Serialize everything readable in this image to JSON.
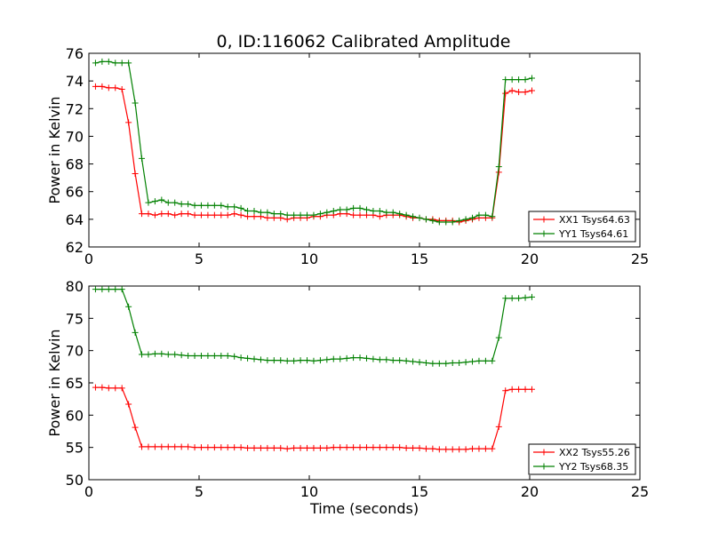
{
  "figure": {
    "title": "0, ID:116062 Calibrated Amplitude",
    "xlabel": "Time (seconds)"
  },
  "colors": {
    "series_1": "#ff0000",
    "series_2": "#008000",
    "axes": "#000000",
    "background": "#ffffff"
  },
  "chart_data": [
    {
      "type": "line",
      "title": "0, ID:116062 Calibrated Amplitude",
      "xlabel": "",
      "ylabel": "Power in Kelvin",
      "xlim": [
        0,
        25
      ],
      "ylim": [
        62,
        76
      ],
      "xticks": [
        0,
        5,
        10,
        15,
        20,
        25
      ],
      "yticks": [
        62,
        64,
        66,
        68,
        70,
        72,
        74,
        76
      ],
      "grid": false,
      "marker": "+",
      "legend": {
        "position": "lower-right",
        "entries": [
          "XX1 Tsys64.63",
          "YY1 Tsys64.61"
        ]
      },
      "x": [
        0.3,
        0.6,
        0.9,
        1.2,
        1.5,
        1.8,
        2.1,
        2.4,
        2.7,
        3.0,
        3.3,
        3.6,
        3.9,
        4.2,
        4.5,
        4.8,
        5.1,
        5.4,
        5.7,
        6.0,
        6.3,
        6.6,
        6.9,
        7.2,
        7.5,
        7.8,
        8.1,
        8.4,
        8.7,
        9.0,
        9.3,
        9.6,
        9.9,
        10.2,
        10.5,
        10.8,
        11.1,
        11.4,
        11.7,
        12.0,
        12.3,
        12.6,
        12.9,
        13.2,
        13.5,
        13.8,
        14.1,
        14.4,
        14.7,
        15.0,
        15.3,
        15.6,
        15.9,
        16.2,
        16.5,
        16.8,
        17.1,
        17.4,
        17.7,
        18.0,
        18.3,
        18.6,
        18.9,
        19.2,
        19.5,
        19.8,
        20.1
      ],
      "series": [
        {
          "name": "XX1 Tsys64.63",
          "color": "#ff0000",
          "values": [
            73.6,
            73.6,
            73.5,
            73.5,
            73.4,
            71.0,
            67.3,
            64.4,
            64.4,
            64.3,
            64.4,
            64.4,
            64.3,
            64.4,
            64.4,
            64.3,
            64.3,
            64.3,
            64.3,
            64.3,
            64.3,
            64.4,
            64.3,
            64.2,
            64.2,
            64.2,
            64.1,
            64.1,
            64.1,
            64.0,
            64.1,
            64.1,
            64.1,
            64.2,
            64.2,
            64.3,
            64.3,
            64.4,
            64.4,
            64.3,
            64.3,
            64.3,
            64.3,
            64.2,
            64.3,
            64.3,
            64.3,
            64.2,
            64.1,
            64.1,
            64.0,
            64.0,
            63.9,
            63.9,
            63.9,
            63.8,
            63.9,
            64.0,
            64.1,
            64.1,
            64.1,
            67.4,
            73.1,
            73.3,
            73.2,
            73.2,
            73.3
          ]
        },
        {
          "name": "YY1 Tsys64.61",
          "color": "#008000",
          "values": [
            75.3,
            75.4,
            75.4,
            75.3,
            75.3,
            75.3,
            72.4,
            68.4,
            65.2,
            65.3,
            65.4,
            65.2,
            65.2,
            65.1,
            65.1,
            65.0,
            65.0,
            65.0,
            65.0,
            65.0,
            64.9,
            64.9,
            64.8,
            64.6,
            64.6,
            64.5,
            64.5,
            64.4,
            64.4,
            64.3,
            64.3,
            64.3,
            64.3,
            64.3,
            64.4,
            64.5,
            64.6,
            64.7,
            64.7,
            64.8,
            64.8,
            64.7,
            64.6,
            64.6,
            64.5,
            64.5,
            64.4,
            64.3,
            64.2,
            64.1,
            64.0,
            63.9,
            63.8,
            63.8,
            63.8,
            63.9,
            64.0,
            64.1,
            64.3,
            64.3,
            64.2,
            67.8,
            74.1,
            74.1,
            74.1,
            74.1,
            74.2
          ]
        }
      ]
    },
    {
      "type": "line",
      "title": "",
      "xlabel": "Time (seconds)",
      "ylabel": "Power in Kelvin",
      "xlim": [
        0,
        25
      ],
      "ylim": [
        50,
        80
      ],
      "xticks": [
        0,
        5,
        10,
        15,
        20,
        25
      ],
      "yticks": [
        50,
        55,
        60,
        65,
        70,
        75,
        80
      ],
      "grid": false,
      "marker": "+",
      "legend": {
        "position": "lower-right",
        "entries": [
          "XX2 Tsys55.26",
          "YY2 Tsys68.35"
        ]
      },
      "x": [
        0.3,
        0.6,
        0.9,
        1.2,
        1.5,
        1.8,
        2.1,
        2.4,
        2.7,
        3.0,
        3.3,
        3.6,
        3.9,
        4.2,
        4.5,
        4.8,
        5.1,
        5.4,
        5.7,
        6.0,
        6.3,
        6.6,
        6.9,
        7.2,
        7.5,
        7.8,
        8.1,
        8.4,
        8.7,
        9.0,
        9.3,
        9.6,
        9.9,
        10.2,
        10.5,
        10.8,
        11.1,
        11.4,
        11.7,
        12.0,
        12.3,
        12.6,
        12.9,
        13.2,
        13.5,
        13.8,
        14.1,
        14.4,
        14.7,
        15.0,
        15.3,
        15.6,
        15.9,
        16.2,
        16.5,
        16.8,
        17.1,
        17.4,
        17.7,
        18.0,
        18.3,
        18.6,
        18.9,
        19.2,
        19.5,
        19.8,
        20.1
      ],
      "series": [
        {
          "name": "XX2 Tsys55.26",
          "color": "#ff0000",
          "values": [
            64.3,
            64.3,
            64.2,
            64.2,
            64.2,
            61.7,
            58.1,
            55.1,
            55.1,
            55.1,
            55.1,
            55.1,
            55.1,
            55.1,
            55.1,
            55.0,
            55.0,
            55.0,
            55.0,
            55.0,
            55.0,
            55.0,
            55.0,
            54.9,
            54.9,
            54.9,
            54.9,
            54.9,
            54.9,
            54.8,
            54.9,
            54.9,
            54.9,
            54.9,
            54.9,
            54.9,
            55.0,
            55.0,
            55.0,
            55.0,
            55.0,
            55.0,
            55.0,
            55.0,
            55.0,
            55.0,
            55.0,
            54.9,
            54.9,
            54.9,
            54.8,
            54.8,
            54.7,
            54.7,
            54.7,
            54.7,
            54.7,
            54.8,
            54.8,
            54.8,
            54.8,
            58.2,
            63.8,
            64.0,
            64.0,
            64.0,
            64.0
          ]
        },
        {
          "name": "YY2 Tsys68.35",
          "color": "#008000",
          "values": [
            79.5,
            79.5,
            79.5,
            79.5,
            79.5,
            76.8,
            72.8,
            69.4,
            69.4,
            69.5,
            69.5,
            69.4,
            69.4,
            69.3,
            69.2,
            69.2,
            69.2,
            69.2,
            69.2,
            69.2,
            69.2,
            69.1,
            68.9,
            68.8,
            68.7,
            68.6,
            68.5,
            68.5,
            68.5,
            68.4,
            68.4,
            68.5,
            68.5,
            68.4,
            68.5,
            68.6,
            68.7,
            68.7,
            68.8,
            68.9,
            68.9,
            68.8,
            68.7,
            68.6,
            68.6,
            68.5,
            68.5,
            68.4,
            68.3,
            68.2,
            68.1,
            68.0,
            68.0,
            68.0,
            68.1,
            68.1,
            68.2,
            68.3,
            68.4,
            68.4,
            68.4,
            72.0,
            78.1,
            78.1,
            78.1,
            78.2,
            78.3
          ]
        }
      ]
    }
  ]
}
